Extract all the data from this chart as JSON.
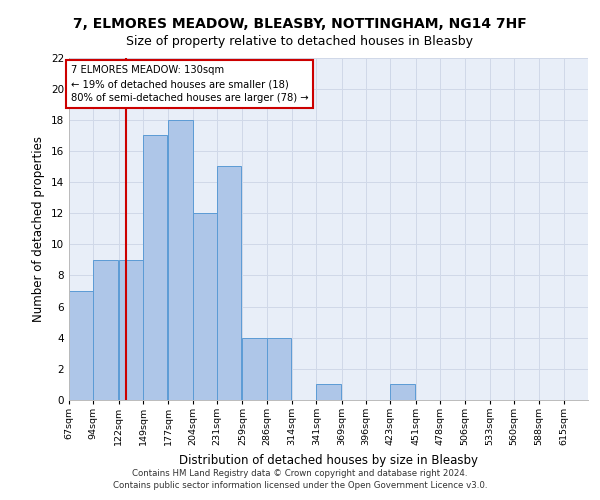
{
  "title1": "7, ELMORES MEADOW, BLEASBY, NOTTINGHAM, NG14 7HF",
  "title2": "Size of property relative to detached houses in Bleasby",
  "xlabel": "Distribution of detached houses by size in Bleasby",
  "ylabel": "Number of detached properties",
  "footnote1": "Contains HM Land Registry data © Crown copyright and database right 2024.",
  "footnote2": "Contains public sector information licensed under the Open Government Licence v3.0.",
  "bin_labels": [
    "67sqm",
    "94sqm",
    "122sqm",
    "149sqm",
    "177sqm",
    "204sqm",
    "231sqm",
    "259sqm",
    "286sqm",
    "314sqm",
    "341sqm",
    "369sqm",
    "396sqm",
    "423sqm",
    "451sqm",
    "478sqm",
    "506sqm",
    "533sqm",
    "560sqm",
    "588sqm",
    "615sqm"
  ],
  "bin_edges": [
    67,
    94,
    122,
    149,
    177,
    204,
    231,
    259,
    286,
    314,
    341,
    369,
    396,
    423,
    451,
    478,
    506,
    533,
    560,
    588,
    615
  ],
  "bar_heights": [
    7,
    9,
    9,
    17,
    18,
    12,
    15,
    4,
    4,
    0,
    1,
    0,
    0,
    1,
    0,
    0,
    0,
    0,
    0,
    0
  ],
  "bar_color": "#aec6e8",
  "bar_edge_color": "#5b9bd5",
  "property_size": 130,
  "red_line_color": "#cc0000",
  "annotation_text": "7 ELMORES MEADOW: 130sqm\n← 19% of detached houses are smaller (18)\n80% of semi-detached houses are larger (78) →",
  "annotation_box_color": "#ffffff",
  "annotation_box_edge": "#cc0000",
  "ylim": [
    0,
    22
  ],
  "yticks": [
    0,
    2,
    4,
    6,
    8,
    10,
    12,
    14,
    16,
    18,
    20,
    22
  ],
  "grid_color": "#d0d8e8",
  "background_color": "#e8eef8",
  "title1_fontsize": 10,
  "title2_fontsize": 9,
  "xlabel_fontsize": 8.5,
  "ylabel_fontsize": 8.5,
  "footnote_fontsize": 6.2
}
